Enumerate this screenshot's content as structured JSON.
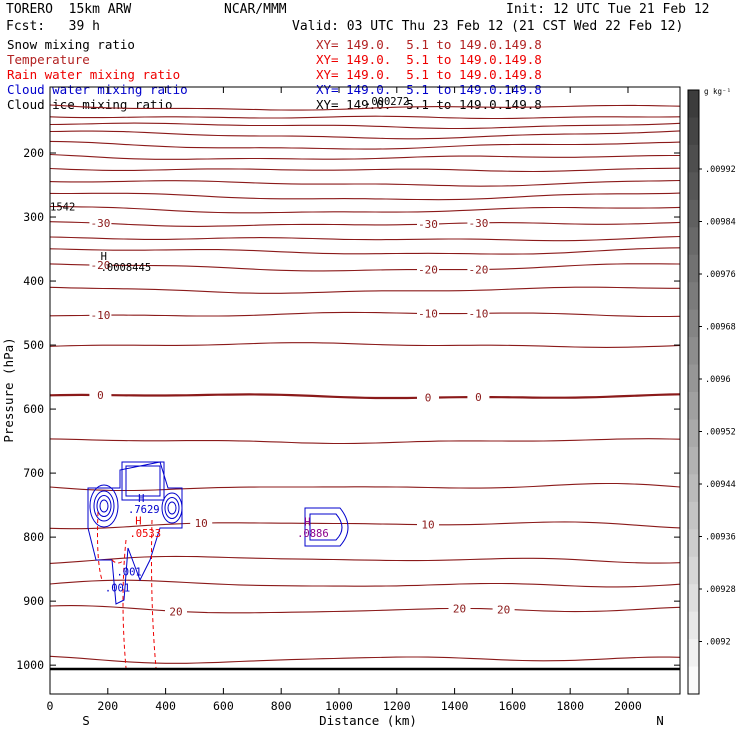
{
  "header": {
    "model": "TORERO  15km ARW",
    "center": "NCAR/MMM",
    "init": "Init: 12 UTC Tue 21 Feb 12",
    "fcst": "Fcst:   39 h",
    "valid": "Valid: 03 UTC Thu 23 Feb 12 (21 CST Wed 22 Feb 12)"
  },
  "fields": [
    {
      "label": "Snow mixing ratio",
      "color": "#000000",
      "xy": ""
    },
    {
      "label": "Temperature",
      "color": "#b22222",
      "xy": "XY= 149.0.  5.1 to 149.0.149.8"
    },
    {
      "label": "Rain water mixing ratio",
      "color": "#ee0000",
      "xy": "XY= 149.0.  5.1 to 149.0.149.8"
    },
    {
      "label": "Cloud water mixing ratio",
      "color": "#0000cc",
      "xy": "XY= 149.0.  5.1 to 149.0.149.8"
    },
    {
      "label": "Cloud ice mixing ratio",
      "color": "#000000",
      "xy": "XY= 149.0.  5.1 to 149.0.149.8"
    }
  ],
  "first_xy": "XY= 149.0.  5.1 to 149.0.149.8",
  "colors": {
    "temperature": "#8b1a1a",
    "rain": "#ee0000",
    "cloud_water": "#0000cc",
    "snow": "#000000"
  },
  "chart_data": {
    "type": "contour-cross-section",
    "xlabel": "Distance (km)",
    "ylabel": "Pressure (hPa)",
    "xlim": [
      0,
      2180
    ],
    "ylim": [
      1050,
      100
    ],
    "xticks": [
      0,
      200,
      400,
      600,
      800,
      1000,
      1200,
      1400,
      1600,
      1800,
      2000
    ],
    "yticks": [
      200,
      300,
      400,
      500,
      600,
      700,
      800,
      900,
      1000
    ],
    "x_end_labels": {
      "left": "S",
      "right": "N"
    },
    "temperature_contours": [
      {
        "p": 125,
        "label": ""
      },
      {
        "p": 140,
        "label": ""
      },
      {
        "p": 153,
        "label": ""
      },
      {
        "p": 168,
        "label": ""
      },
      {
        "p": 185,
        "label": ""
      },
      {
        "p": 203,
        "label": ""
      },
      {
        "p": 222,
        "label": ""
      },
      {
        "p": 243,
        "label": ""
      },
      {
        "p": 264,
        "label": ""
      },
      {
        "p": 285,
        "label": ""
      },
      {
        "p": 307,
        "label": "-30"
      },
      {
        "p": 330,
        "label": ""
      },
      {
        "p": 350,
        "label": ""
      },
      {
        "p": 375,
        "label": "-20"
      },
      {
        "p": 410,
        "label": ""
      },
      {
        "p": 452,
        "label": "-10"
      },
      {
        "p": 500,
        "label": ""
      },
      {
        "p": 580,
        "label": "0"
      },
      {
        "p": 650,
        "label": ""
      },
      {
        "p": 722,
        "label": ""
      },
      {
        "p": 780,
        "label": "10"
      },
      {
        "p": 835,
        "label": ""
      },
      {
        "p": 874,
        "label": ""
      },
      {
        "p": 914,
        "label": "20"
      },
      {
        "p": 991,
        "label": ""
      }
    ],
    "annotations": [
      {
        "text": "1542",
        "x": 0,
        "p": 290
      },
      {
        "text": "H",
        "x": 175,
        "p": 367
      },
      {
        "text": ".0008445",
        "x": 175,
        "p": 384
      },
      {
        "text": ".000272",
        "x": 1090,
        "p": 125
      },
      {
        "text": "H",
        "x": 305,
        "p": 745
      },
      {
        "text": ".7629",
        "x": 270,
        "p": 762
      },
      {
        "text": "H",
        "x": 295,
        "p": 780
      },
      {
        "text": ".0533",
        "x": 275,
        "p": 800
      },
      {
        "text": "H",
        "x": 880,
        "p": 782
      },
      {
        "text": ".0886",
        "x": 855,
        "p": 800
      },
      {
        "text": ".001",
        "x": 230,
        "p": 860
      },
      {
        "text": ".001",
        "x": 190,
        "p": 885
      }
    ],
    "colorbar": {
      "unit": "g kg⁻¹",
      "ticks": [
        ".00992",
        ".00984",
        ".00976",
        ".00968",
        ".0096",
        ".00952",
        ".00944",
        ".00936",
        ".00928",
        ".0092"
      ]
    }
  }
}
